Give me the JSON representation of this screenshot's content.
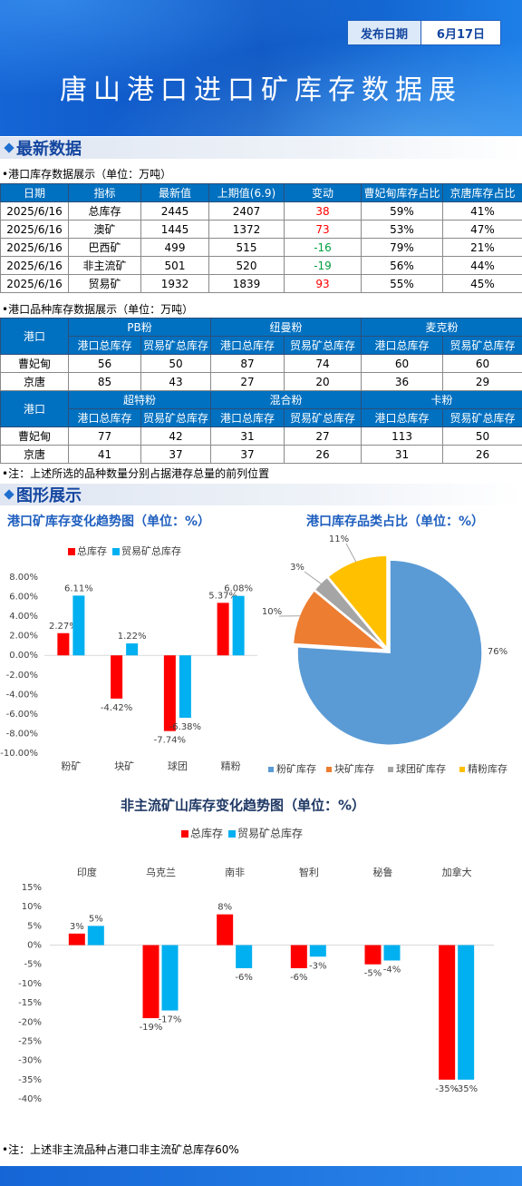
{
  "header": {
    "date_label": "发布日期",
    "date": "6月17日",
    "title": "唐山港口进口矿库存数据展"
  },
  "sections": [
    "最新数据",
    "图形展示"
  ],
  "table1": {
    "caption": "•港口库存数据展示（单位：万吨）",
    "columns": [
      "日期",
      "指标",
      "最新值",
      "上期值(6.9)",
      "变动",
      "曹妃甸库存占比",
      "京唐库存占比"
    ],
    "rows": [
      [
        "2025/6/16",
        "总库存",
        2445,
        2407,
        38,
        "59%",
        "41%"
      ],
      [
        "2025/6/16",
        "澳矿",
        1445,
        1372,
        73,
        "53%",
        "47%"
      ],
      [
        "2025/6/16",
        "巴西矿",
        499,
        515,
        -16,
        "79%",
        "21%"
      ],
      [
        "2025/6/16",
        "非主流矿",
        501,
        520,
        -19,
        "56%",
        "44%"
      ],
      [
        "2025/6/16",
        "贸易矿",
        1932,
        1839,
        93,
        "55%",
        "45%"
      ]
    ]
  },
  "table2": {
    "caption": "•港口品种库存数据展示（单位：万吨）",
    "blocks": [
      {
        "port_header": "港口",
        "groups": [
          "PB粉",
          "纽曼粉",
          "麦克粉"
        ],
        "subheaders": [
          "港口总库存",
          "贸易矿总库存",
          "港口总库存",
          "贸易矿总库存",
          "港口总库存",
          "贸易矿总库存"
        ],
        "rows": [
          [
            "曹妃甸",
            56,
            50,
            87,
            74,
            60,
            60
          ],
          [
            "京唐",
            85,
            43,
            27,
            20,
            36,
            29
          ]
        ]
      },
      {
        "port_header": "港口",
        "groups": [
          "超特粉",
          "混合粉",
          "卡粉"
        ],
        "subheaders": [
          "港口总库存",
          "贸易矿总库存",
          "港口总库存",
          "贸易矿总库存",
          "港口总库存",
          "贸易矿总库存"
        ],
        "rows": [
          [
            "曹妃甸",
            77,
            42,
            31,
            27,
            113,
            50
          ],
          [
            "京唐",
            41,
            37,
            37,
            26,
            31,
            26
          ]
        ]
      }
    ]
  },
  "note1": "•注：上述所选的品种数量分别占据港存总量的前列位置",
  "note2": "•注：上述非主流品种占港口非主流矿总库存60%",
  "chart_data": [
    {
      "type": "bar",
      "title": "港口矿库存变化趋势图（单位：%）",
      "categories": [
        "粉矿",
        "块矿",
        "球团",
        "精粉"
      ],
      "series": [
        {
          "name": "总库存",
          "color": "#ff0000",
          "values": [
            2.27,
            -4.42,
            -7.74,
            5.37
          ],
          "value_labels": [
            "2.27%",
            "-4.42%",
            "-7.74%",
            "5.37%"
          ]
        },
        {
          "name": "贸易矿总库存",
          "color": "#00b0f0",
          "values": [
            6.11,
            1.22,
            -6.38,
            6.08
          ],
          "value_labels": [
            "6.11%",
            "1.22%",
            "-6.38%",
            "6.08%"
          ]
        }
      ],
      "ylim": [
        -10,
        8
      ],
      "yticks": [
        {
          "value": -10,
          "label": "-10.00%"
        },
        {
          "value": -8,
          "label": "-8.00%"
        },
        {
          "value": -6,
          "label": "-6.00%"
        },
        {
          "value": -4,
          "label": "-4.00%"
        },
        {
          "value": -2,
          "label": "-2.00%"
        },
        {
          "value": 0,
          "label": "0.00%"
        },
        {
          "value": 2,
          "label": "2.00%"
        },
        {
          "value": 4,
          "label": "4.00%"
        },
        {
          "value": 6,
          "label": "6.00%"
        },
        {
          "value": 8,
          "label": "8.00%"
        }
      ]
    },
    {
      "type": "pie",
      "title": "港口库存品类占比（单位：%）",
      "categories": [
        "粉矿库存",
        "块矿库存",
        "球团矿库存",
        "精粉库存"
      ],
      "values": [
        76,
        10,
        3,
        11
      ],
      "value_labels": [
        "76%",
        "10%",
        "3%",
        "11%"
      ],
      "colors": [
        "#5b9bd5",
        "#ed7d31",
        "#a5a5a5",
        "#ffc000"
      ]
    },
    {
      "type": "bar",
      "title": "非主流矿山库存变化趋势图（单位：%）",
      "categories": [
        "印度",
        "乌克兰",
        "南非",
        "智利",
        "秘鲁",
        "加拿大"
      ],
      "series": [
        {
          "name": "总库存",
          "color": "#ff0000",
          "values": [
            3,
            -19,
            8,
            -6,
            -5,
            -35
          ],
          "value_labels": [
            "3%",
            "-19%",
            "8%",
            "-6%",
            "-5%",
            "-35%"
          ]
        },
        {
          "name": "贸易矿总库存",
          "color": "#00b0f0",
          "values": [
            5,
            -17,
            -6,
            -3,
            -4,
            -35
          ],
          "value_labels": [
            "5%",
            "-17%",
            "-6%",
            "-3%",
            "-4%",
            "-35%"
          ]
        }
      ],
      "ylim": [
        -40,
        15
      ],
      "yticks": [
        {
          "value": -40,
          "label": "-40%"
        },
        {
          "value": -35,
          "label": "-35%"
        },
        {
          "value": -30,
          "label": "-30%"
        },
        {
          "value": -25,
          "label": "-25%"
        },
        {
          "value": -20,
          "label": "-20%"
        },
        {
          "value": -15,
          "label": "-15%"
        },
        {
          "value": -10,
          "label": "-10%"
        },
        {
          "value": -5,
          "label": "-5%"
        },
        {
          "value": 0,
          "label": "0%"
        },
        {
          "value": 5,
          "label": "5%"
        },
        {
          "value": 10,
          "label": "10%"
        },
        {
          "value": 15,
          "label": "15%"
        }
      ]
    }
  ]
}
